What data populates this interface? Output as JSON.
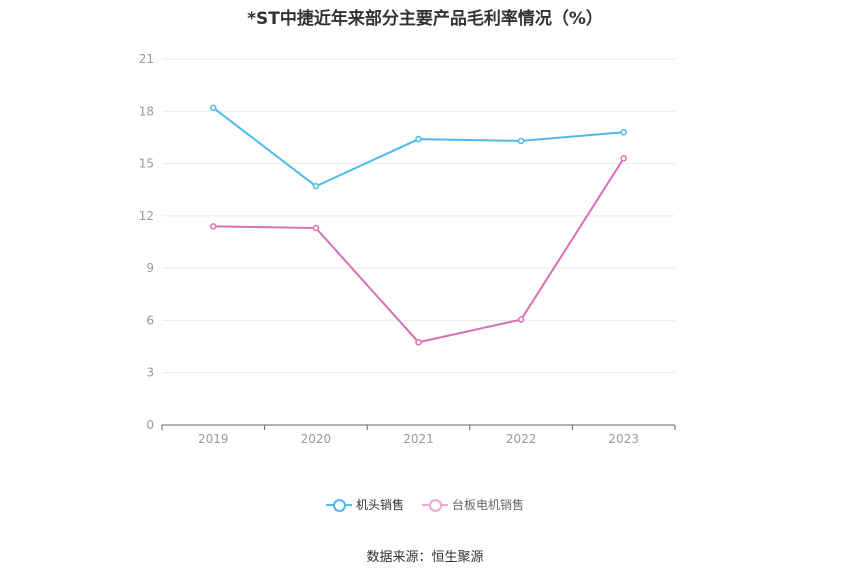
{
  "title": "*ST中捷近年来部分主要产品毛利率情况（%）",
  "source": "数据来源：恒生聚源",
  "colors": {
    "series1": "#4fb9ee",
    "series2": "#d96fb5",
    "grid": "#e6e9f0",
    "axis": "#666666",
    "tick": "#999999"
  },
  "chart_data": {
    "type": "line",
    "x": [
      "2019",
      "2020",
      "2021",
      "2022",
      "2023"
    ],
    "ylim": [
      0,
      21
    ],
    "yticks": [
      0,
      3,
      6,
      9,
      12,
      15,
      18,
      21
    ],
    "series": [
      {
        "name": "机头销售",
        "values": [
          18.2,
          13.7,
          16.4,
          16.3,
          16.8
        ]
      },
      {
        "name": "台板电机销售",
        "values": [
          11.4,
          11.3,
          4.75,
          6.05,
          15.3
        ]
      }
    ],
    "grid": true,
    "legend_position": "bottom"
  }
}
